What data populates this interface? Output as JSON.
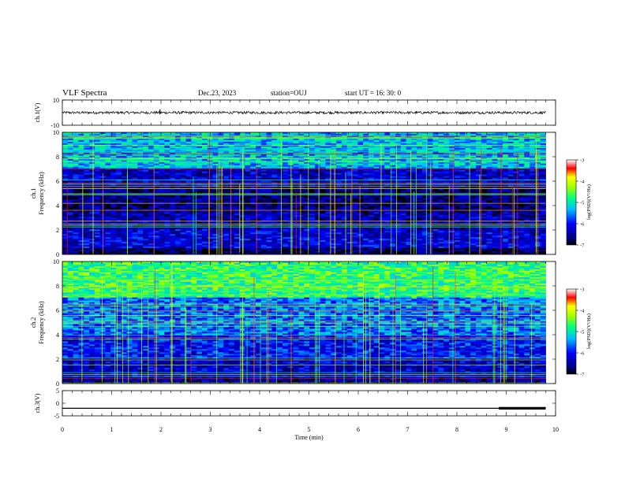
{
  "header": {
    "title": "VLF Spectra",
    "date": "Dec.23, 2023",
    "station": "station=OUJ",
    "start": "start UT =  16: 30: 0"
  },
  "chart_data": [
    {
      "type": "line",
      "name": "waveform-ch1",
      "ylabel": "ch.1(V)",
      "ylim": [
        -10,
        10
      ],
      "yticks": [
        "10",
        "-10"
      ],
      "xlim": [
        0,
        10
      ],
      "trace": {
        "level": 0,
        "amplitude_band": [
          -1,
          1
        ],
        "spikes": [
          {
            "x": 1.98,
            "y": 2.5
          }
        ]
      }
    },
    {
      "type": "heatmap",
      "name": "spectrogram-ch1",
      "ylabel": "ch.1\nFrequency (kHz)",
      "ylim": [
        0,
        10
      ],
      "yticks": [
        "0",
        "2",
        "4",
        "6",
        "8",
        "10"
      ],
      "xlim": [
        0,
        9.8
      ],
      "colorbar": {
        "label": "log(PSD)(V²/Hz)",
        "range": [
          -7,
          -3
        ],
        "ticks": [
          "-3",
          "-4",
          "-5",
          "-6",
          "-7"
        ]
      },
      "description_bands": [
        {
          "f": [
            0,
            0.5
          ],
          "level": -6.8
        },
        {
          "f": [
            0.5,
            2
          ],
          "level": -6.2
        },
        {
          "f": [
            2,
            3.5
          ],
          "level": -6.4
        },
        {
          "f": [
            3.5,
            5.5
          ],
          "level": -6.6
        },
        {
          "f": [
            5.5,
            7
          ],
          "level": -6.3
        },
        {
          "f": [
            7,
            10
          ],
          "level": -5.3
        }
      ]
    },
    {
      "type": "heatmap",
      "name": "spectrogram-ch2",
      "ylabel": "ch.2\nFrequency (kHz)",
      "ylim": [
        0,
        10
      ],
      "yticks": [
        "0",
        "2",
        "4",
        "6",
        "8",
        "10"
      ],
      "xlim": [
        0,
        9.8
      ],
      "colorbar": {
        "label": "log(PSD)(V²/Hz)",
        "range": [
          -7,
          -3
        ],
        "ticks": [
          "-3",
          "-4",
          "-5",
          "-6",
          "-7"
        ]
      },
      "description_bands": [
        {
          "f": [
            0,
            0.5
          ],
          "level": -6.5
        },
        {
          "f": [
            0.5,
            2
          ],
          "level": -6.3
        },
        {
          "f": [
            2,
            4
          ],
          "level": -6.0
        },
        {
          "f": [
            4,
            7
          ],
          "level": -5.6
        },
        {
          "f": [
            7,
            10
          ],
          "level": -4.7
        }
      ]
    },
    {
      "type": "line",
      "name": "waveform-ch3",
      "ylabel": "ch.3(V)",
      "ylim": [
        -5,
        5
      ],
      "yticks": [
        "5",
        "0",
        "-5"
      ],
      "xlim": [
        0,
        10
      ],
      "xlabel": "Time (min)",
      "xticks": [
        "0",
        "1",
        "2",
        "3",
        "4",
        "5",
        "6",
        "7",
        "8",
        "9",
        "10"
      ],
      "trace": {
        "level": -2.0,
        "thick_segment": [
          8.85,
          9.8
        ]
      }
    }
  ]
}
